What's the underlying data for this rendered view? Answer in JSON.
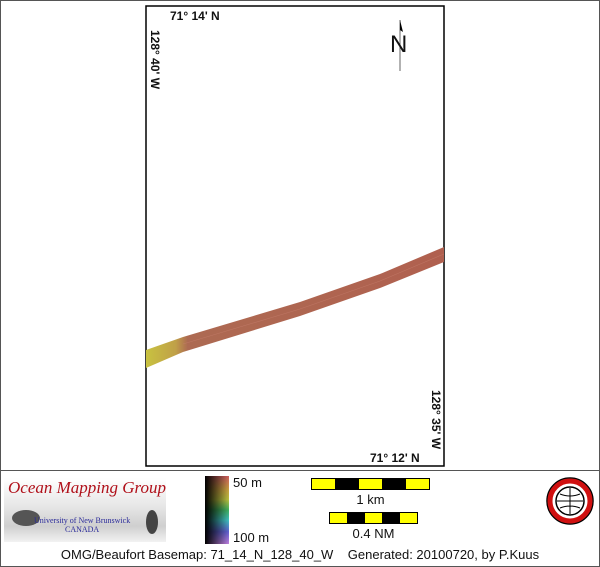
{
  "map": {
    "lat_top": "71° 14' N",
    "lat_bottom": "71° 12' N",
    "lon_left": "128° 40' W",
    "lon_right": "128° 35' W",
    "north_label": "N"
  },
  "legend": {
    "logo_title": "Ocean Mapping Group",
    "logo_sub1": "University of New Brunswick",
    "logo_sub2": "CANADA",
    "depth_min": "50 m",
    "depth_max": "100 m",
    "scale_km": "1 km",
    "scale_nm": "0.4 NM",
    "caption": "OMG/Beaufort Basemap: 71_14_N_128_40_W    Generated: 20100720, by P.Kuus"
  },
  "colors": {
    "frame": "#000000",
    "strip_shallow": "#c8c040",
    "strip_main": "#b06050",
    "scale_yellow": "#ffff00"
  }
}
